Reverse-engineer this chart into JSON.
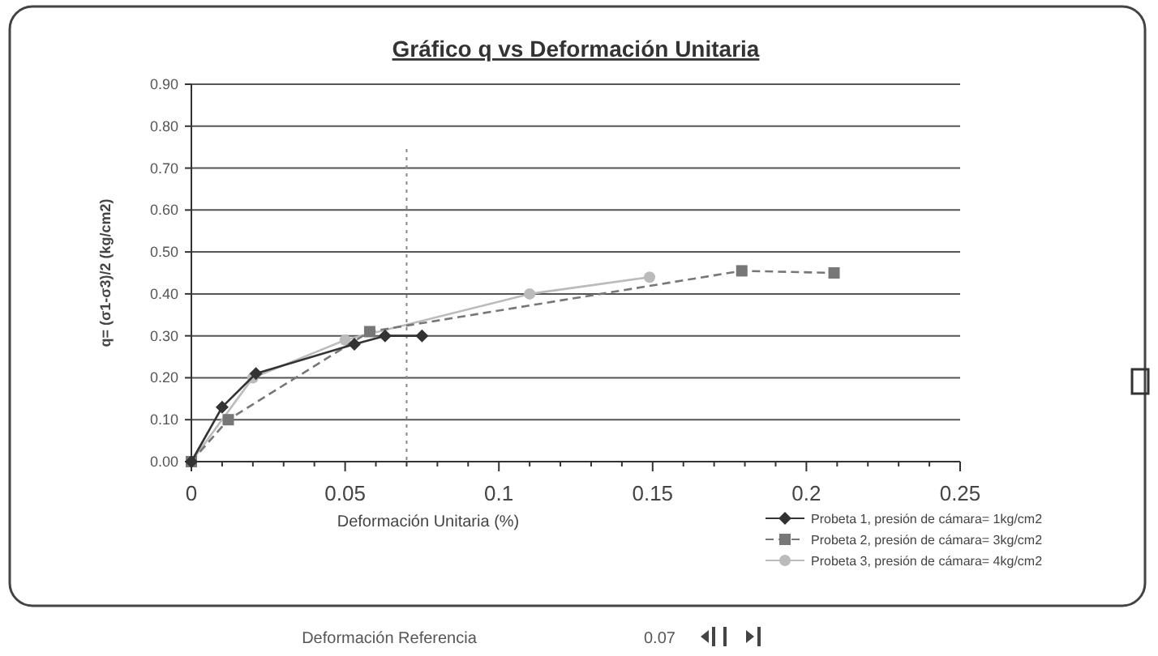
{
  "chart_data": {
    "type": "line",
    "title": "Gráfico q vs Deformación Unitaria",
    "xlabel": "Deformación Unitaria (%)",
    "ylabel": "q= (σ1-σ3)/2  (kg/cm2)",
    "xlim": [
      0,
      0.25
    ],
    "ylim": [
      0,
      0.9
    ],
    "xticks": [
      0,
      {
        "value": 0.01,
        "label": null
      },
      {
        "value": 0.02,
        "label": null
      },
      {
        "value": 0.03,
        "label": null
      },
      {
        "value": 0.04,
        "label": null
      },
      0.05,
      {
        "value": 0.06,
        "label": null
      },
      {
        "value": 0.07,
        "label": null
      },
      {
        "value": 0.08,
        "label": null
      },
      {
        "value": 0.09,
        "label": null
      },
      0.1,
      {
        "value": 0.11,
        "label": null
      },
      {
        "value": 0.12,
        "label": null
      },
      {
        "value": 0.13,
        "label": null
      },
      {
        "value": 0.14,
        "label": null
      },
      0.15,
      {
        "value": 0.16,
        "label": null
      },
      {
        "value": 0.17,
        "label": null
      },
      {
        "value": 0.18,
        "label": null
      },
      {
        "value": 0.19,
        "label": null
      },
      0.2,
      {
        "value": 0.21,
        "label": null
      },
      {
        "value": 0.22,
        "label": null
      },
      {
        "value": 0.23,
        "label": null
      },
      {
        "value": 0.24,
        "label": null
      },
      0.25
    ],
    "yticks": [
      {
        "value": 0,
        "label": "0.00"
      },
      {
        "value": 0.1,
        "label": "0.10"
      },
      {
        "value": 0.2,
        "label": "0.20"
      },
      {
        "value": 0.3,
        "label": "0.30"
      },
      {
        "value": 0.4,
        "label": "0.40"
      },
      {
        "value": 0.5,
        "label": "0.50"
      },
      {
        "value": 0.6,
        "label": "0.60"
      },
      {
        "value": 0.7,
        "label": "0.70"
      },
      {
        "value": 0.8,
        "label": "0.80"
      },
      {
        "value": 0.9,
        "label": "0.90"
      }
    ],
    "grid": "y",
    "legend": "bottom right",
    "series": [
      {
        "name": "Probeta 1, presión de cámara= 1kg/cm2",
        "color": "#333333",
        "marker": "diamond",
        "x": [
          0,
          0.01,
          0.021,
          0.053,
          0.063,
          0.075
        ],
        "values": [
          0,
          0.13,
          0.21,
          0.28,
          0.3,
          0.3
        ]
      },
      {
        "name": "Probeta 2, presión de cámara= 3kg/cm2",
        "color": "#777777",
        "marker": "square",
        "line_style": "dashed",
        "x": [
          0,
          0.012,
          0.058,
          0.179,
          0.209
        ],
        "values": [
          0,
          0.1,
          0.31,
          0.455,
          0.45
        ]
      },
      {
        "name": "Probeta 3, presión de cámara= 4kg/cm2",
        "color": "#bbbbbb",
        "marker": "circle",
        "x": [
          0,
          0.02,
          0.05,
          0.11,
          0.149
        ],
        "values": [
          0,
          0.2,
          0.29,
          0.4,
          0.44
        ]
      }
    ],
    "ref_lines": [
      {
        "axis": "x",
        "value": 0.07,
        "line_style": "dotted",
        "color": "#888888"
      }
    ],
    "annotations": [
      "Deformación Referencia",
      "0.07"
    ]
  }
}
